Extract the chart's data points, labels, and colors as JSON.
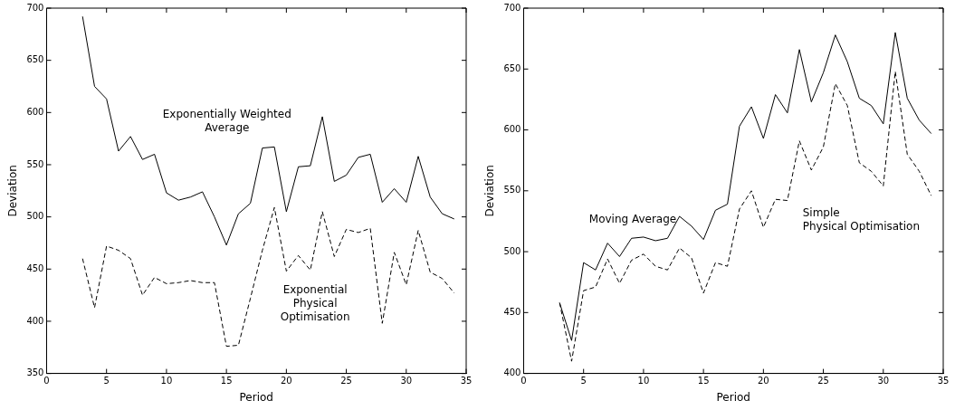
{
  "chart_data": [
    {
      "type": "line",
      "xlabel": "Period",
      "ylabel": "Deviation",
      "x": [
        3,
        4,
        5,
        6,
        7,
        8,
        9,
        10,
        11,
        12,
        13,
        14,
        15,
        16,
        17,
        18,
        19,
        20,
        21,
        22,
        23,
        24,
        25,
        26,
        27,
        28,
        29,
        30,
        31,
        32,
        33,
        34
      ],
      "xlim": [
        0,
        35
      ],
      "xticks": [
        0,
        5,
        10,
        15,
        20,
        25,
        30,
        35
      ],
      "ylim": [
        350,
        700
      ],
      "yticks": [
        350,
        400,
        450,
        500,
        550,
        600,
        650,
        700
      ],
      "grid": false,
      "legend": false,
      "marker": "none",
      "series": [
        {
          "name": "Exponentially Weighted\nAverage",
          "color": "#000000",
          "line_style": "solid",
          "values": [
            692,
            625,
            613,
            563,
            577,
            555,
            560,
            523,
            516,
            519,
            524,
            500,
            473,
            503,
            513,
            566,
            567,
            505,
            548,
            549,
            596,
            534,
            540,
            557,
            560,
            514,
            527,
            514,
            558,
            519,
            503,
            498
          ]
        },
        {
          "name": "Exponential\nPhysical\nOptimisation",
          "color": "#000000",
          "line_style": "dashed",
          "values": [
            460,
            413,
            472,
            468,
            460,
            425,
            442,
            436,
            437,
            439,
            437,
            437,
            376,
            377,
            422,
            468,
            509,
            448,
            463,
            449,
            505,
            462,
            488,
            485,
            489,
            398,
            466,
            435,
            487,
            447,
            441,
            427
          ]
        }
      ]
    },
    {
      "type": "line",
      "xlabel": "Period",
      "ylabel": "Deviation",
      "x": [
        3,
        4,
        5,
        6,
        7,
        8,
        9,
        10,
        11,
        12,
        13,
        14,
        15,
        16,
        17,
        18,
        19,
        20,
        21,
        22,
        23,
        24,
        25,
        26,
        27,
        28,
        29,
        30,
        31,
        32,
        33,
        34
      ],
      "xlim": [
        0,
        35
      ],
      "xticks": [
        0,
        5,
        10,
        15,
        20,
        25,
        30,
        35
      ],
      "ylim": [
        400,
        700
      ],
      "yticks": [
        400,
        450,
        500,
        550,
        600,
        650,
        700
      ],
      "grid": false,
      "legend": false,
      "marker": "none",
      "series": [
        {
          "name": "Moving Average",
          "color": "#000000",
          "line_style": "solid",
          "values": [
            458,
            427,
            491,
            485,
            507,
            496,
            511,
            512,
            509,
            511,
            529,
            521,
            510,
            534,
            539,
            603,
            619,
            593,
            629,
            614,
            666,
            623,
            647,
            678,
            656,
            626,
            620,
            605,
            680,
            626,
            608,
            597
          ]
        },
        {
          "name": "Simple\nPhysical Optimisation",
          "color": "#000000",
          "line_style": "dashed",
          "values": [
            458,
            410,
            468,
            471,
            494,
            474,
            493,
            498,
            488,
            485,
            503,
            495,
            466,
            491,
            488,
            535,
            550,
            520,
            543,
            542,
            591,
            567,
            586,
            638,
            620,
            573,
            566,
            554,
            648,
            580,
            566,
            546
          ]
        }
      ]
    }
  ]
}
